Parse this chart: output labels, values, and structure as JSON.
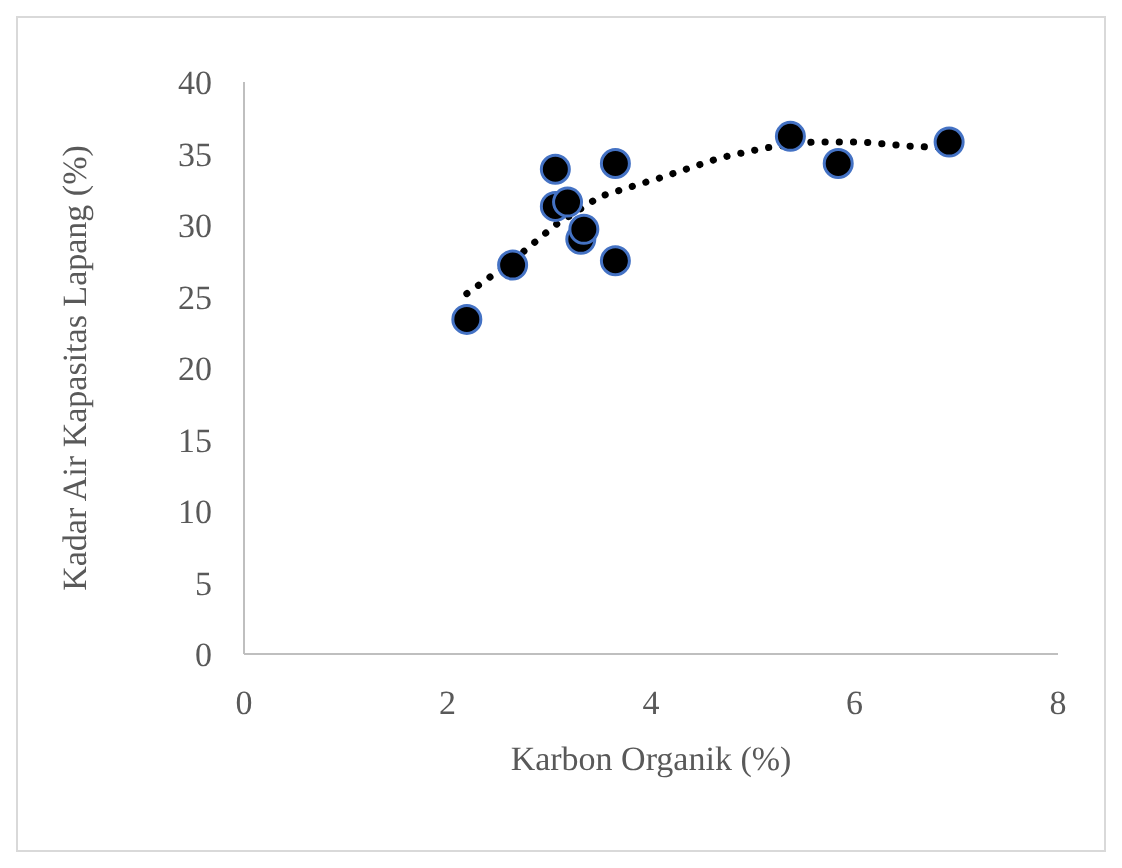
{
  "chart_data": {
    "type": "scatter",
    "xlabel": "Karbon Organik (%)",
    "ylabel": "Kadar Air Kapasitas Lapang (%)",
    "xlim": [
      0,
      8
    ],
    "xticks": [
      0,
      2,
      4,
      6,
      8
    ],
    "ylim": [
      0,
      40
    ],
    "yticks": [
      0,
      5,
      10,
      15,
      20,
      25,
      30,
      35,
      40
    ],
    "grid": false,
    "legend": false,
    "series": [
      {
        "color": "#000000",
        "marker": "circle",
        "x": [
          2.19,
          2.64,
          3.06,
          3.06,
          3.18,
          3.31,
          3.34,
          3.65,
          3.65,
          5.37,
          5.84,
          6.93
        ],
        "values": [
          23.4,
          27.2,
          33.9,
          31.3,
          31.6,
          29.0,
          29.7,
          34.3,
          27.5,
          36.2,
          34.3,
          35.8
        ]
      },
      {
        "type": "line",
        "color": "#000000",
        "marker": "none",
        "line_style": "dotted",
        "x": [
          2.19,
          2.64,
          3.06,
          3.5,
          4.09,
          4.68,
          5.13,
          5.59,
          6.08,
          6.57,
          6.93
        ],
        "values": [
          25.2,
          27.5,
          30.0,
          32.0,
          33.3,
          34.7,
          35.4,
          35.8,
          35.8,
          35.5,
          35.4
        ]
      }
    ]
  }
}
